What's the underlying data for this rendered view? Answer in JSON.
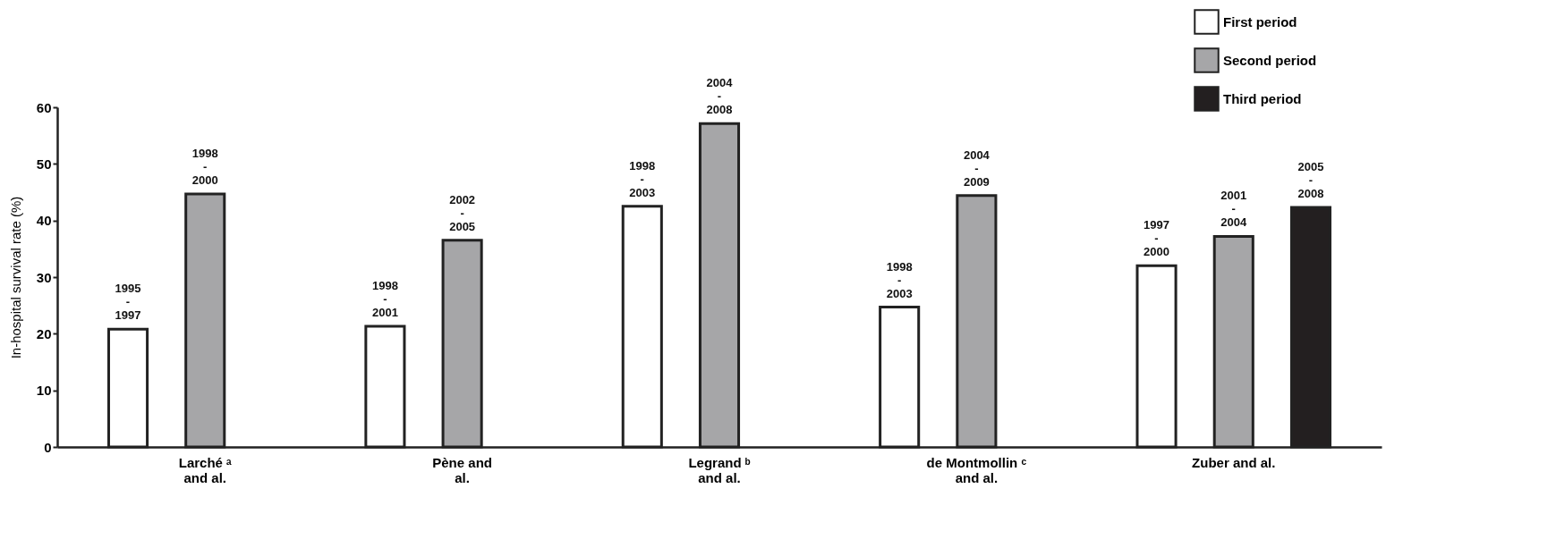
{
  "chart_data": {
    "type": "bar",
    "ylabel": "In-hospital survival rate (%)",
    "categories": [
      "Larché ᵃ\nand al.",
      "Pène and\nal.",
      "Legrand ᵇ\nand al.",
      "de Montmollin ᶜ\nand al.",
      "Zuber and al."
    ],
    "series": [
      {
        "name": "First period",
        "color": "#ffffff",
        "values": [
          20.8,
          21.3,
          42.5,
          24.7,
          32.0
        ]
      },
      {
        "name": "Second period",
        "color": "#a6a6a8",
        "values": [
          44.7,
          36.5,
          57.1,
          44.4,
          37.2
        ]
      },
      {
        "name": "Third period",
        "color": "#231f20",
        "values": [
          null,
          null,
          null,
          null,
          42.3
        ]
      }
    ],
    "annotations": [
      "1995\n-\n1997",
      "1998\n-\n2000",
      "1998\n-\n2001",
      "2002\n-\n2005",
      "1998\n-\n2003",
      "2004\n-\n2008",
      "1998\n-\n2003",
      "2004\n-\n2009",
      "1997\n-\n2000",
      "2001\n-\n2004",
      "2005\n-\n2008"
    ],
    "ylim": [
      0,
      60
    ],
    "yticks": [
      0,
      10,
      20,
      30,
      40,
      50,
      60
    ],
    "grid": false,
    "legend": "top right"
  }
}
